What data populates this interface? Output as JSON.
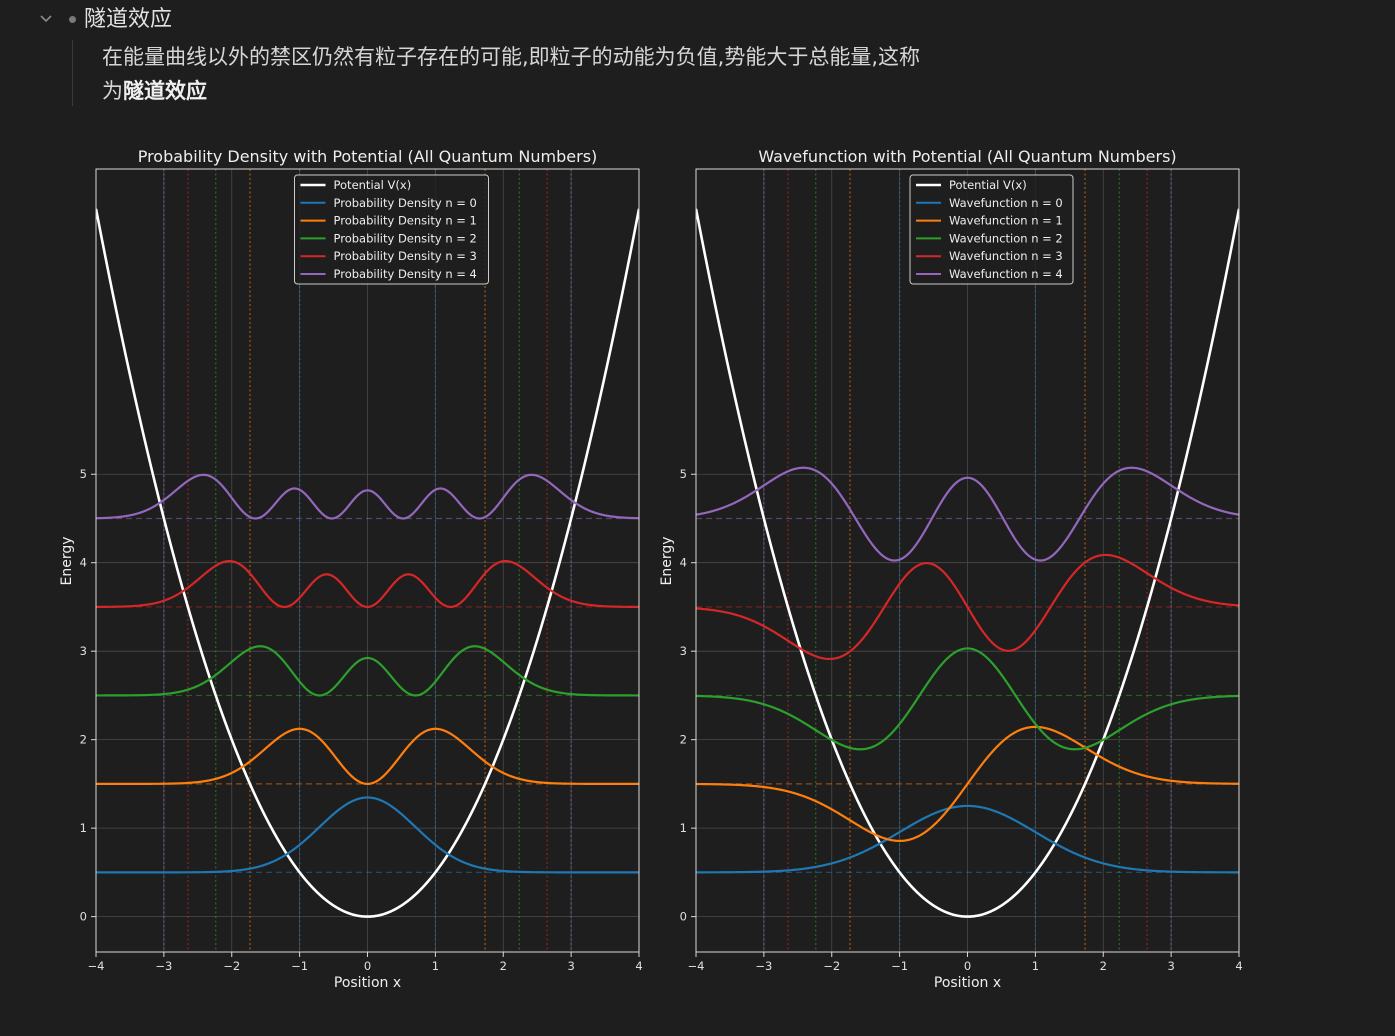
{
  "outline": {
    "heading": "隧道效应",
    "paragraph_text": "在能量曲线以外的禁区仍然有粒子存在的可能,即粒子的动能为负值,势能大于总能量,这称为",
    "paragraph_bold": "隧道效应",
    "colors": {
      "background": "#1e1e1e",
      "text": "#d6d6d6",
      "bullet": "#7a7a7a"
    }
  },
  "chart_data": [
    {
      "type": "line",
      "title": "Probability Density with Potential (All Quantum Numbers)",
      "xlabel": "Position x",
      "ylabel": "Energy",
      "xlim": [
        -4,
        4
      ],
      "ylim": [
        -0.4,
        8.45
      ],
      "xticks": [
        "−4",
        "−3",
        "−2",
        "−1",
        "0",
        "1",
        "2",
        "3",
        "4"
      ],
      "yticks": [
        "0",
        "1",
        "2",
        "3",
        "4",
        "5"
      ],
      "grid": true,
      "legend_position": "upper center",
      "potential": {
        "name": "Potential V(x)",
        "formula": "V(x) = 0.5 x^2",
        "color": "#ffffff"
      },
      "energy_levels": [
        0.5,
        1.5,
        2.5,
        3.5,
        4.5
      ],
      "classical_turning_points": [
        1.0,
        1.732,
        2.236,
        2.646,
        3.0
      ],
      "series": [
        {
          "name": "Probability Density n = 0",
          "n": 0,
          "energy": 0.5,
          "color": "#1f77b4",
          "peak_values": [
            {
              "x": 0,
              "y": 1.35
            }
          ]
        },
        {
          "name": "Probability Density n = 1",
          "n": 1,
          "energy": 1.5,
          "color": "#ff7f0e",
          "peak_values": [
            {
              "x": -1.0,
              "y": 2.12
            },
            {
              "x": 0,
              "y": 1.5
            },
            {
              "x": 1.0,
              "y": 2.12
            }
          ]
        },
        {
          "name": "Probability Density n = 2",
          "n": 2,
          "energy": 2.5,
          "color": "#2ca02c",
          "peak_values": [
            {
              "x": -1.6,
              "y": 3.05
            },
            {
              "x": 0,
              "y": 2.92
            },
            {
              "x": 1.6,
              "y": 3.05
            }
          ]
        },
        {
          "name": "Probability Density n = 3",
          "n": 3,
          "energy": 3.5,
          "color": "#d62728",
          "peak_values": [
            {
              "x": -2.05,
              "y": 4.02
            },
            {
              "x": -0.6,
              "y": 3.87
            },
            {
              "x": 0.6,
              "y": 3.87
            },
            {
              "x": 2.05,
              "y": 4.02
            }
          ]
        },
        {
          "name": "Probability Density n = 4",
          "n": 4,
          "energy": 4.5,
          "color": "#9467bd",
          "peak_values": [
            {
              "x": -2.45,
              "y": 5.0
            },
            {
              "x": -1.1,
              "y": 4.84
            },
            {
              "x": 0,
              "y": 4.82
            },
            {
              "x": 1.1,
              "y": 4.84
            },
            {
              "x": 2.45,
              "y": 5.0
            }
          ]
        }
      ]
    },
    {
      "type": "line",
      "title": "Wavefunction with Potential (All Quantum Numbers)",
      "xlabel": "Position x",
      "ylabel": "Energy",
      "xlim": [
        -4,
        4
      ],
      "ylim": [
        -0.4,
        8.45
      ],
      "xticks": [
        "−4",
        "−3",
        "−2",
        "−1",
        "0",
        "1",
        "2",
        "3",
        "4"
      ],
      "yticks": [
        "0",
        "1",
        "2",
        "3",
        "4",
        "5"
      ],
      "grid": true,
      "legend_position": "upper center",
      "potential": {
        "name": "Potential V(x)",
        "formula": "V(x) = 0.5 x^2",
        "color": "#ffffff"
      },
      "energy_levels": [
        0.5,
        1.5,
        2.5,
        3.5,
        4.5
      ],
      "classical_turning_points": [
        1.0,
        1.732,
        2.236,
        2.646,
        3.0
      ],
      "series": [
        {
          "name": "Wavefunction n = 0",
          "n": 0,
          "energy": 0.5,
          "color": "#1f77b4",
          "peak_values": [
            {
              "x": 0,
              "y": 0.95
            }
          ]
        },
        {
          "name": "Wavefunction n = 1",
          "n": 1,
          "energy": 1.5,
          "color": "#ff7f0e",
          "peak_values": [
            {
              "x": -1.0,
              "y": 1.12
            },
            {
              "x": 1.0,
              "y": 1.88
            }
          ]
        },
        {
          "name": "Wavefunction n = 2",
          "n": 2,
          "energy": 2.5,
          "color": "#2ca02c",
          "peak_values": [
            {
              "x": -1.6,
              "y": 2.87
            },
            {
              "x": 0,
              "y": 2.18
            },
            {
              "x": 1.6,
              "y": 2.87
            }
          ]
        },
        {
          "name": "Wavefunction n = 3",
          "n": 3,
          "energy": 3.5,
          "color": "#d62728",
          "peak_values": [
            {
              "x": -2.05,
              "y": 3.15
            },
            {
              "x": -0.6,
              "y": 3.8
            },
            {
              "x": 0.6,
              "y": 3.2
            },
            {
              "x": 2.05,
              "y": 3.85
            }
          ]
        },
        {
          "name": "Wavefunction n = 4",
          "n": 4,
          "energy": 4.5,
          "color": "#9467bd",
          "peak_values": [
            {
              "x": -2.45,
              "y": 4.85
            },
            {
              "x": -1.1,
              "y": 4.2
            },
            {
              "x": 0,
              "y": 4.78
            },
            {
              "x": 1.1,
              "y": 4.2
            },
            {
              "x": 2.45,
              "y": 4.85
            }
          ]
        }
      ]
    }
  ]
}
